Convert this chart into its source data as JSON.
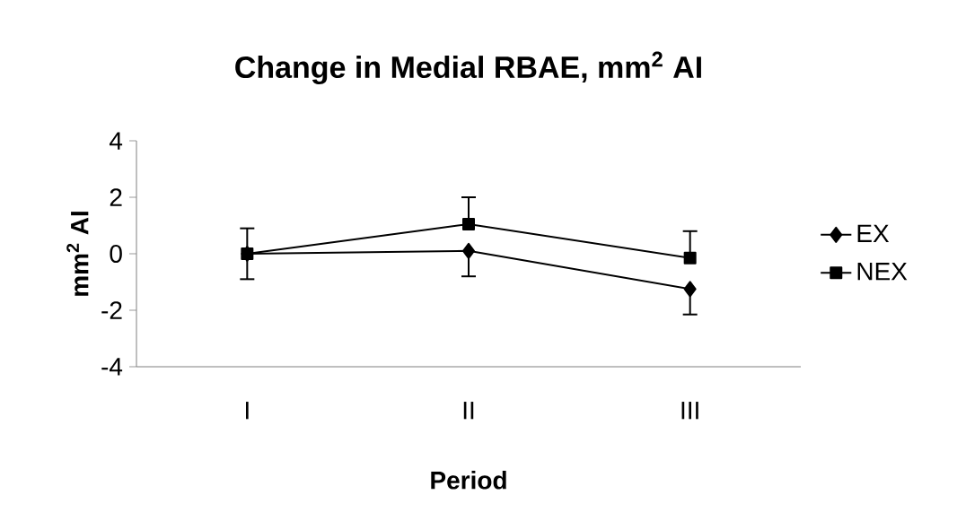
{
  "chart_data": {
    "type": "line",
    "title": "Change in Medial RBAE, mm$^{2}$ AI",
    "xlabel": "Period",
    "ylabel": "mm$^{2}$ AI",
    "categories": [
      "I",
      "II",
      "III"
    ],
    "series": [
      {
        "name": "EX",
        "color": "#000000",
        "marker": "diamond",
        "values": [
          0,
          0.1,
          -1.25
        ],
        "errors": [
          [
            -0.9,
            0
          ],
          [
            -0.8,
            0.1
          ],
          [
            -2.15,
            -1.25
          ]
        ]
      },
      {
        "name": "NEX",
        "color": "#000000",
        "marker": "square",
        "values": [
          0,
          1.05,
          -0.15
        ],
        "errors": [
          [
            0,
            0.9
          ],
          [
            1.05,
            2.0
          ],
          [
            -0.15,
            0.8
          ]
        ]
      }
    ],
    "ylim": [
      -4,
      4
    ],
    "yticks": [
      -4,
      -2,
      0,
      2,
      4
    ],
    "grid": false,
    "legend": "right",
    "line_style": "solid"
  }
}
